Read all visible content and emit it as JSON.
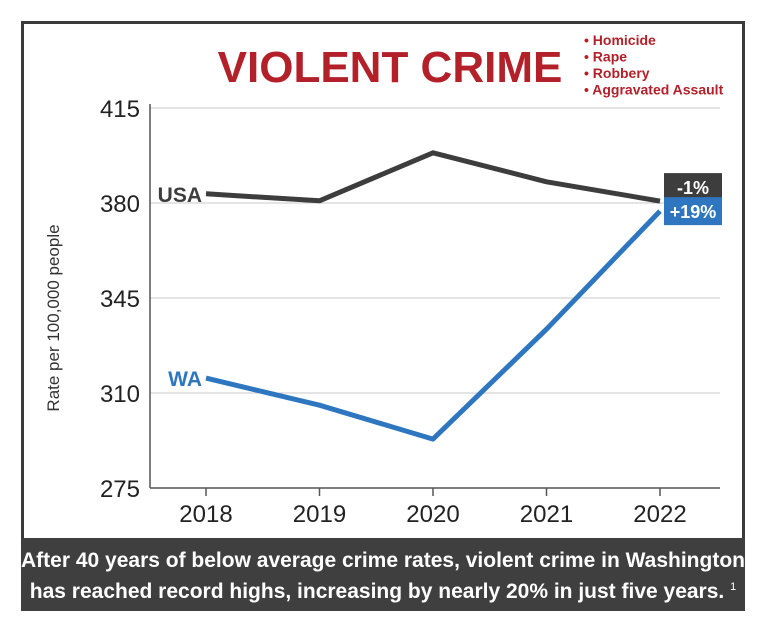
{
  "chart_data": {
    "type": "line",
    "title": "VIOLENT CRIME",
    "legend_items": [
      "Homicide",
      "Rape",
      "Robbery",
      "Aggravated Assault"
    ],
    "ylabel": "Rate per 100,000 people",
    "xlabel": "",
    "ylim": [
      275,
      415
    ],
    "yticks": [
      "415",
      "380",
      "345",
      "310",
      "275"
    ],
    "categories": [
      "2018",
      "2019",
      "2020",
      "2021",
      "2022"
    ],
    "series": [
      {
        "name": "USA",
        "values": [
          383.4,
          380.8,
          398.5,
          387.8,
          380.7
        ],
        "color": "#3d3d3d",
        "change_label": "-1%"
      },
      {
        "name": "WA",
        "values": [
          315.5,
          305.5,
          293.0,
          333.5,
          377.0
        ],
        "color": "#2e77c0",
        "change_label": "+19%"
      }
    ],
    "grid": "horizontal"
  },
  "caption": {
    "line1": "After 40 years of below average crime rates, violent crime in Washington",
    "line2": "has reached record highs, increasing by nearly 20% in just five years.",
    "footnote": "1"
  }
}
